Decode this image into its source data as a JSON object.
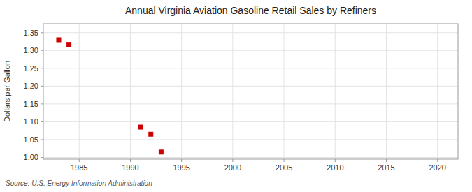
{
  "chart_data": {
    "type": "scatter",
    "title": "Annual Virginia Aviation Gasoline Retail Sales by Refiners",
    "y_label": "Dollars per Gallon",
    "source": "Source: U.S. Energy Information Administration",
    "x": [
      1983,
      1984,
      1991,
      1992,
      1993
    ],
    "values": [
      1.33,
      1.317,
      1.085,
      1.065,
      1.015
    ],
    "color": "#cc0000",
    "marker": "square",
    "xlim": [
      1981.5,
      2022
    ],
    "ylim": [
      0.995,
      1.375
    ],
    "xticks": [
      1985,
      1990,
      1995,
      2000,
      2005,
      2010,
      2015,
      2020
    ],
    "yticks": [
      {
        "value": 1.0,
        "label": "1.00"
      },
      {
        "value": 1.05,
        "label": "1.05"
      },
      {
        "value": 1.1,
        "label": "1.10"
      },
      {
        "value": 1.15,
        "label": "1.15"
      },
      {
        "value": 1.2,
        "label": "1.20"
      },
      {
        "value": 1.25,
        "label": "1.25"
      },
      {
        "value": 1.3,
        "label": "1.30"
      },
      {
        "value": 1.35,
        "label": "1.35"
      }
    ],
    "grid": true
  }
}
